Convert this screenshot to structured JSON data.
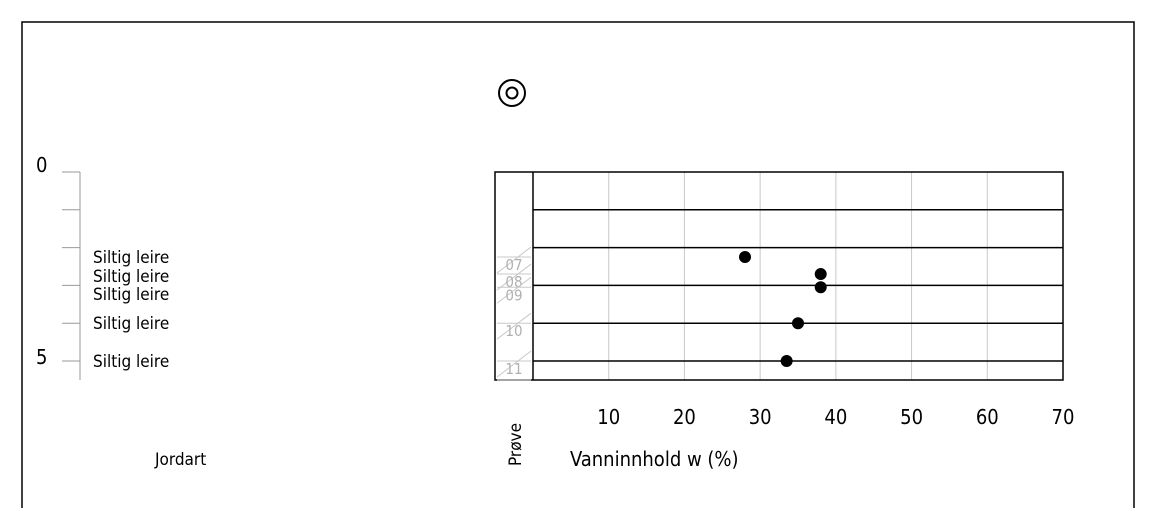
{
  "depth_axis": {
    "tick_labels": [
      "0",
      "5"
    ],
    "tick_values": [
      0,
      5
    ],
    "ticks": [
      0,
      1,
      2,
      3,
      4,
      5
    ]
  },
  "soil_column": {
    "title": "Jordart",
    "layers": [
      {
        "depth": 2.25,
        "label": "Siltig leire"
      },
      {
        "depth": 2.7,
        "label": "Siltig leire"
      },
      {
        "depth": 3.05,
        "label": "Siltig leire"
      },
      {
        "depth": 4.0,
        "label": "Siltig leire"
      },
      {
        "depth": 5.0,
        "label": "Siltig leire"
      }
    ]
  },
  "sample_column": {
    "title": "Prøve",
    "samples": [
      {
        "id": "07",
        "depth": 2.25
      },
      {
        "id": "08",
        "depth": 2.7
      },
      {
        "id": "09",
        "depth": 3.05
      },
      {
        "id": "10",
        "depth": 4.0
      },
      {
        "id": "11",
        "depth": 5.0
      }
    ]
  },
  "symbol": {
    "name": "sounding-point-icon"
  },
  "chart_data": {
    "type": "scatter",
    "xlabel": "Vanninnhold w (%)",
    "ylabel": "",
    "x_tick_labels": [
      "10",
      "20",
      "30",
      "40",
      "50",
      "60",
      "70"
    ],
    "xlim": [
      0,
      70
    ],
    "ylim": [
      0,
      5.5
    ],
    "y_inverted": true,
    "grid": true,
    "series": [
      {
        "points": [
          {
            "x": 28,
            "y": 2.25
          },
          {
            "x": 38,
            "y": 2.7
          },
          {
            "x": 38,
            "y": 3.05
          },
          {
            "x": 35,
            "y": 4.0
          },
          {
            "x": 33.5,
            "y": 5.0
          }
        ]
      }
    ]
  }
}
